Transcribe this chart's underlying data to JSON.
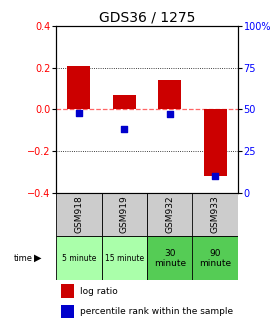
{
  "title": "GDS36 / 1275",
  "samples": [
    "GSM918",
    "GSM919",
    "GSM932",
    "GSM933"
  ],
  "times": [
    "5 minute",
    "15 minute",
    "30\nminute",
    "90\nminute"
  ],
  "time_colors": [
    "#aaffaa",
    "#aaffaa",
    "#55cc55",
    "#55cc55"
  ],
  "log_ratios": [
    0.21,
    0.07,
    0.14,
    -0.32
  ],
  "percentile_ranks": [
    48,
    38,
    47,
    10
  ],
  "ylim": [
    -0.4,
    0.4
  ],
  "y2lim": [
    0,
    100
  ],
  "yticks": [
    -0.4,
    -0.2,
    0.0,
    0.2,
    0.4
  ],
  "y2ticks": [
    0,
    25,
    50,
    75,
    100
  ],
  "bar_color": "#cc0000",
  "dot_color": "#0000cc",
  "zero_line_color": "#ff6666",
  "bg_color": "#ffffff",
  "plot_bg": "#ffffff",
  "header_bg": "#cccccc",
  "title_fontsize": 10,
  "tick_fontsize": 7,
  "label_fontsize": 6
}
